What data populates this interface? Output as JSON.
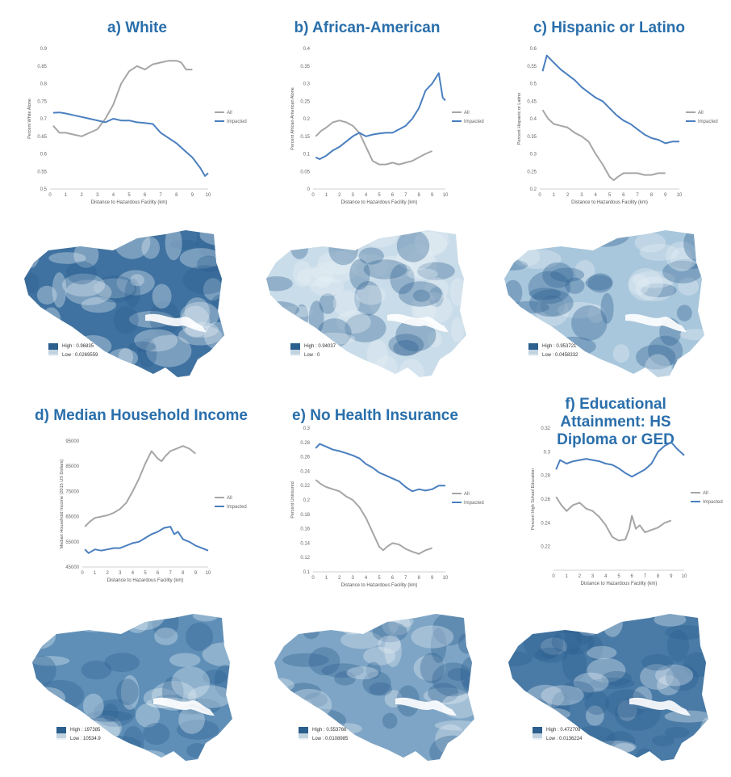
{
  "colors": {
    "title": "#2a6fab",
    "all_line": "#a6a6a6",
    "impacted_line": "#4a7fbf",
    "map_high": "#2b5f8e",
    "map_low": "#e8f0f5"
  },
  "panels": [
    {
      "title": "a) White",
      "legend": {
        "high": "High : 0.96835",
        "low": "Low : 0.0269559"
      },
      "chart_data": {
        "type": "line",
        "xlabel": "Distance to Hazardous Facility (km)",
        "ylabel": "Percent White Alone",
        "xlim": [
          0,
          10
        ],
        "xticks": [
          "0",
          "1",
          "2",
          "3",
          "4",
          "5",
          "6",
          "7",
          "8",
          "9",
          "10"
        ],
        "ylim": [
          0.5,
          0.9
        ],
        "yticks": [
          "0.5",
          "0.55",
          "0.6",
          "0.65",
          "0.7",
          "0.75",
          "0.8",
          "0.85",
          "0.9"
        ],
        "series": [
          {
            "name": "All",
            "x": [
              0.2,
              0.6,
              1,
              1.5,
              2,
              2.5,
              3,
              3.5,
              4,
              4.5,
              5,
              5.5,
              6,
              6.5,
              7,
              7.5,
              8,
              8.3,
              8.6,
              9
            ],
            "y": [
              0.68,
              0.66,
              0.66,
              0.655,
              0.65,
              0.66,
              0.67,
              0.7,
              0.74,
              0.8,
              0.835,
              0.85,
              0.84,
              0.855,
              0.86,
              0.865,
              0.865,
              0.86,
              0.84,
              0.84
            ]
          },
          {
            "name": "Impacted",
            "x": [
              0.2,
              0.6,
              1,
              1.5,
              2,
              2.5,
              3,
              3.5,
              4,
              4.5,
              5,
              5.5,
              6,
              6.5,
              7,
              7.5,
              8,
              8.5,
              9,
              9.5,
              9.8,
              10
            ],
            "y": [
              0.717,
              0.718,
              0.715,
              0.71,
              0.705,
              0.7,
              0.695,
              0.69,
              0.7,
              0.695,
              0.695,
              0.69,
              0.688,
              0.685,
              0.66,
              0.645,
              0.63,
              0.61,
              0.59,
              0.56,
              0.537,
              0.545
            ]
          }
        ]
      }
    },
    {
      "title": "b) African-American",
      "legend": {
        "high": "High : 0.94037",
        "low": "Low : 0"
      },
      "chart_data": {
        "type": "line",
        "xlabel": "Distance to Hazardous Facility (km)",
        "ylabel": "Percent African-American Alone",
        "xlim": [
          0,
          10
        ],
        "xticks": [
          "0",
          "1",
          "2",
          "3",
          "4",
          "5",
          "6",
          "7",
          "8",
          "9",
          "10"
        ],
        "ylim": [
          0,
          0.4
        ],
        "yticks": [
          "0",
          "0.05",
          "0.1",
          "0.15",
          "0.2",
          "0.25",
          "0.3",
          "0.35",
          "0.4"
        ],
        "series": [
          {
            "name": "All",
            "x": [
              0.2,
              0.6,
              1,
              1.5,
              2,
              2.5,
              3,
              3.5,
              4,
              4.5,
              5,
              5.5,
              6,
              6.5,
              7,
              7.5,
              8,
              8.5,
              9
            ],
            "y": [
              0.15,
              0.165,
              0.175,
              0.19,
              0.195,
              0.19,
              0.18,
              0.16,
              0.12,
              0.08,
              0.07,
              0.07,
              0.075,
              0.07,
              0.075,
              0.08,
              0.09,
              0.1,
              0.108
            ]
          },
          {
            "name": "Impacted",
            "x": [
              0.2,
              0.5,
              1,
              1.5,
              2,
              2.5,
              3,
              3.5,
              4,
              4.5,
              5,
              5.5,
              6,
              6.5,
              7,
              7.5,
              8,
              8.5,
              9,
              9.5,
              9.8,
              10
            ],
            "y": [
              0.09,
              0.085,
              0.095,
              0.11,
              0.12,
              0.135,
              0.15,
              0.16,
              0.15,
              0.155,
              0.158,
              0.16,
              0.16,
              0.17,
              0.18,
              0.2,
              0.23,
              0.28,
              0.3,
              0.33,
              0.26,
              0.252
            ]
          }
        ]
      }
    },
    {
      "title": "c) Hispanic or Latino",
      "legend": {
        "high": "High : 0.953721",
        "low": "Low : 0.0458332"
      },
      "chart_data": {
        "type": "line",
        "xlabel": "Distance to Hazardous Facility (km)",
        "ylabel": "Percent Hispanic or Latino",
        "xlim": [
          0,
          10
        ],
        "xticks": [
          "0",
          "1",
          "2",
          "3",
          "4",
          "5",
          "6",
          "7",
          "8",
          "9",
          "10"
        ],
        "ylim": [
          0.2,
          0.6
        ],
        "yticks": [
          "0.2",
          "0.25",
          "0.3",
          "0.35",
          "0.4",
          "0.45",
          "0.5",
          "0.55",
          "0.6"
        ],
        "series": [
          {
            "name": "All",
            "x": [
              0.2,
              0.6,
              1,
              1.5,
              2,
              2.5,
              3,
              3.5,
              4,
              4.5,
              5,
              5.3,
              5.6,
              6,
              6.5,
              7,
              7.5,
              8,
              8.5,
              9
            ],
            "y": [
              0.425,
              0.4,
              0.385,
              0.38,
              0.375,
              0.36,
              0.35,
              0.335,
              0.3,
              0.27,
              0.235,
              0.225,
              0.235,
              0.245,
              0.245,
              0.245,
              0.24,
              0.24,
              0.245,
              0.245
            ]
          },
          {
            "name": "Impacted",
            "x": [
              0.2,
              0.5,
              1,
              1.5,
              2,
              2.5,
              3,
              3.5,
              4,
              4.5,
              5,
              5.5,
              6,
              6.5,
              7,
              7.5,
              8,
              8.5,
              9,
              9.5,
              10
            ],
            "y": [
              0.535,
              0.58,
              0.56,
              0.54,
              0.525,
              0.51,
              0.49,
              0.475,
              0.46,
              0.45,
              0.43,
              0.41,
              0.395,
              0.385,
              0.37,
              0.355,
              0.345,
              0.34,
              0.33,
              0.335,
              0.335
            ]
          }
        ]
      }
    },
    {
      "title": "d) Median Household Income",
      "legend": {
        "high": "High : 197385",
        "low": "Low : 10534.9"
      },
      "chart_data": {
        "type": "line",
        "xlabel": "Distance to Hazardous Facility (km)",
        "ylabel": "Median Household Income (2015 US Dollars)",
        "xlim": [
          0,
          10
        ],
        "xticks": [
          "0",
          "1",
          "2",
          "3",
          "4",
          "5",
          "6",
          "7",
          "8",
          "9",
          "10"
        ],
        "ylim": [
          45000,
          95000
        ],
        "yticks": [
          "45000",
          "55000",
          "65000",
          "75000",
          "85000",
          "95000"
        ],
        "series": [
          {
            "name": "All",
            "x": [
              0.2,
              0.6,
              1,
              1.5,
              2,
              2.5,
              3,
              3.5,
              4,
              4.5,
              5,
              5.5,
              6,
              6.3,
              6.6,
              7,
              7.5,
              8,
              8.5,
              9
            ],
            "y": [
              61000,
              63000,
              64500,
              65000,
              65500,
              66500,
              68000,
              70500,
              75000,
              80000,
              86000,
              91000,
              88000,
              87000,
              89000,
              91000,
              92000,
              93000,
              92000,
              90000
            ]
          },
          {
            "name": "Impacted",
            "x": [
              0.2,
              0.5,
              1,
              1.5,
              2,
              2.5,
              3,
              3.5,
              4,
              4.5,
              5,
              5.5,
              6,
              6.5,
              7,
              7.3,
              7.6,
              8,
              8.5,
              9,
              9.5,
              10
            ],
            "y": [
              52000,
              50500,
              52000,
              51500,
              52000,
              52500,
              52500,
              53500,
              54500,
              55000,
              56500,
              58000,
              59000,
              60500,
              61000,
              58000,
              59000,
              56000,
              55000,
              53500,
              52500,
              51500
            ]
          }
        ]
      }
    },
    {
      "title": "e) No Health Insurance",
      "legend": {
        "high": "High : 0.553766",
        "low": "Low : 0.0108985"
      },
      "chart_data": {
        "type": "line",
        "xlabel": "Distance to Hazardous Facility (km)",
        "ylabel": "Percent Uninsured",
        "xlim": [
          0,
          10
        ],
        "xticks": [
          "0",
          "1",
          "2",
          "3",
          "4",
          "5",
          "6",
          "7",
          "8",
          "9",
          "10"
        ],
        "ylim": [
          0.1,
          0.3
        ],
        "yticks": [
          "0.1",
          "0.12",
          "0.14",
          "0.16",
          "0.18",
          "0.2",
          "0.22",
          "0.24",
          "0.26",
          "0.28",
          "0.3"
        ],
        "series": [
          {
            "name": "All",
            "x": [
              0.2,
              0.6,
              1,
              1.5,
              2,
              2.5,
              3,
              3.5,
              4,
              4.5,
              5,
              5.3,
              5.6,
              6,
              6.5,
              7,
              7.5,
              8,
              8.5,
              9
            ],
            "y": [
              0.228,
              0.222,
              0.218,
              0.215,
              0.212,
              0.205,
              0.2,
              0.19,
              0.175,
              0.155,
              0.135,
              0.13,
              0.135,
              0.14,
              0.138,
              0.132,
              0.128,
              0.125,
              0.13,
              0.133
            ]
          },
          {
            "name": "Impacted",
            "x": [
              0.2,
              0.5,
              1,
              1.5,
              2,
              2.5,
              3,
              3.5,
              4,
              4.5,
              5,
              5.5,
              6,
              6.5,
              7,
              7.5,
              8,
              8.5,
              9,
              9.5,
              10
            ],
            "y": [
              0.272,
              0.278,
              0.274,
              0.27,
              0.268,
              0.265,
              0.262,
              0.258,
              0.25,
              0.245,
              0.238,
              0.234,
              0.23,
              0.226,
              0.218,
              0.212,
              0.215,
              0.213,
              0.215,
              0.22,
              0.22
            ]
          }
        ]
      }
    },
    {
      "title": "f) Educational Attainment: HS Diploma or GED",
      "legend": {
        "high": "High : 0.472709",
        "low": "Low : 0.0136224"
      },
      "chart_data": {
        "type": "line",
        "xlabel": "Distance to Hazardous Facility (km)",
        "ylabel": "Percent High School Education",
        "xlim": [
          0,
          10
        ],
        "xticks": [
          "0",
          "1",
          "2",
          "3",
          "4",
          "5",
          "6",
          "7",
          "8",
          "9",
          "10"
        ],
        "ylim": [
          0.2,
          0.32
        ],
        "yticks": [
          "0.22",
          "0.24",
          "0.26",
          "0.28",
          "0.3",
          "0.32"
        ],
        "series": [
          {
            "name": "All",
            "x": [
              0.2,
              0.6,
              1,
              1.5,
              2,
              2.5,
              3,
              3.5,
              4,
              4.5,
              5,
              5.5,
              5.8,
              6,
              6.3,
              6.6,
              7,
              7.5,
              8,
              8.5,
              9
            ],
            "y": [
              0.262,
              0.255,
              0.25,
              0.255,
              0.257,
              0.252,
              0.25,
              0.245,
              0.238,
              0.228,
              0.225,
              0.226,
              0.235,
              0.246,
              0.235,
              0.238,
              0.232,
              0.234,
              0.236,
              0.24,
              0.242
            ]
          },
          {
            "name": "Impacted",
            "x": [
              0.2,
              0.5,
              1,
              1.5,
              2,
              2.5,
              3,
              3.5,
              4,
              4.5,
              5,
              5.5,
              6,
              6.5,
              7,
              7.5,
              8,
              8.5,
              9,
              9.5,
              10
            ],
            "y": [
              0.285,
              0.293,
              0.29,
              0.292,
              0.293,
              0.294,
              0.293,
              0.292,
              0.29,
              0.289,
              0.286,
              0.282,
              0.279,
              0.282,
              0.285,
              0.29,
              0.3,
              0.305,
              0.308,
              0.302,
              0.297
            ]
          }
        ]
      }
    }
  ]
}
